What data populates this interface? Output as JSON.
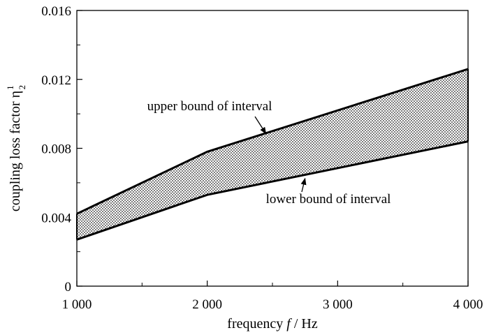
{
  "chart_data": {
    "type": "area",
    "xlabel": "frequency f / Hz",
    "ylabel": "coupling loss factor η",
    "ylabel_symbol_sup": "1",
    "ylabel_symbol_sub": "2",
    "xlim": [
      1000,
      4000
    ],
    "ylim": [
      0,
      0.016
    ],
    "x_ticks": [
      1000,
      2000,
      3000,
      4000
    ],
    "x_tick_labels": [
      "1 000",
      "2 000",
      "3 000",
      "4 000"
    ],
    "y_ticks": [
      0,
      0.004,
      0.008,
      0.012,
      0.016
    ],
    "y_tick_labels": [
      "0",
      "0.004",
      "0.008",
      "0.012",
      "0.016"
    ],
    "x_minor_ticks": [
      1500,
      2500,
      3500
    ],
    "y_minor_ticks": [
      0.002,
      0.006,
      0.01,
      0.014
    ],
    "grid": false,
    "fill_pattern": "dotted",
    "series": [
      {
        "name": "upper bound of interval",
        "x": [
          1000,
          2000,
          4000
        ],
        "y": [
          0.0042,
          0.0078,
          0.0126
        ]
      },
      {
        "name": "lower bound of interval",
        "x": [
          1000,
          2000,
          4000
        ],
        "y": [
          0.0027,
          0.0053,
          0.0084
        ]
      }
    ],
    "annotations": [
      {
        "text": "upper bound of interval",
        "target_x": 2450,
        "target_y": 0.00885
      },
      {
        "text": "lower bound of interval",
        "target_x": 2750,
        "target_y": 0.00625
      }
    ]
  }
}
